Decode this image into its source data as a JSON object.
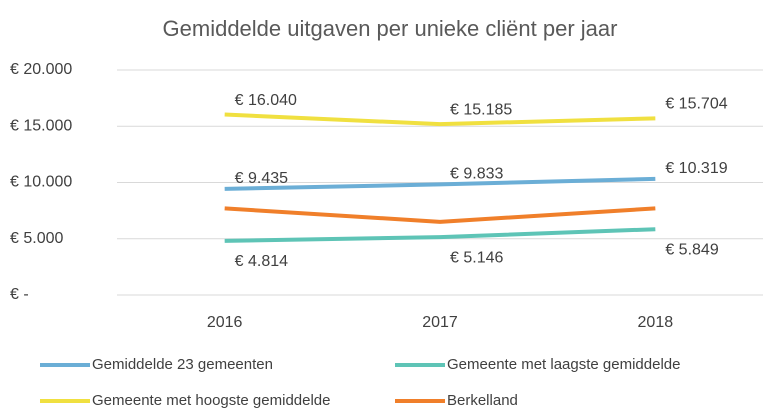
{
  "chart_data": {
    "type": "line",
    "title": "Gemiddelde uitgaven per unieke cliënt per jaar",
    "categories": [
      "2016",
      "2017",
      "2018"
    ],
    "series": [
      {
        "name": "Gemiddelde 23 gemeenten",
        "color": "#6baed6",
        "values": [
          9435,
          9833,
          10319
        ],
        "value_labels": [
          "€ 9.435",
          "€ 9.833",
          "€ 10.319"
        ]
      },
      {
        "name": "Gemeente met laagste gemiddelde",
        "color": "#5ec4b6",
        "values": [
          4814,
          5146,
          5849
        ],
        "value_labels": [
          "€ 4.814",
          "€ 5.146",
          "€ 5.849"
        ]
      },
      {
        "name": "Gemeente met hoogste gemiddelde",
        "color": "#f0e040",
        "values": [
          16040,
          15185,
          15704
        ],
        "value_labels": [
          "€ 16.040",
          "€ 15.185",
          "€ 15.704"
        ]
      },
      {
        "name": "Berkelland",
        "color": "#f07f2a",
        "values": [
          7700,
          6500,
          7700
        ]
      }
    ],
    "ylim": [
      0,
      20000
    ],
    "yticks": [
      {
        "value": 0,
        "label": "€ -"
      },
      {
        "value": 5000,
        "label": "€ 5.000"
      },
      {
        "value": 10000,
        "label": "€ 10.000"
      },
      {
        "value": 15000,
        "label": "€ 15.000"
      },
      {
        "value": 20000,
        "label": "€ 20.000"
      }
    ],
    "grid": true
  }
}
